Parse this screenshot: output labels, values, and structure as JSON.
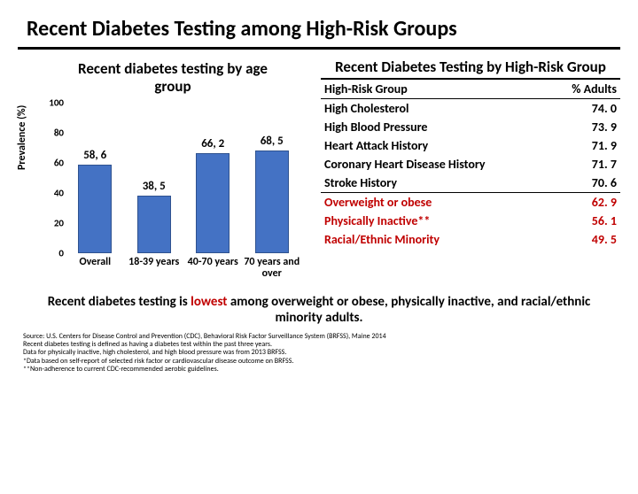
{
  "title": "Recent Diabetes Testing among High-Risk Groups",
  "chart": {
    "type": "bar",
    "title": "Recent diabetes testing by age group",
    "ylabel": "Prevalence (%)",
    "ylim": [
      0,
      100
    ],
    "ytick_step": 20,
    "yticks": [
      0,
      20,
      40,
      60,
      80,
      100
    ],
    "categories": [
      "Overall",
      "18-39 years",
      "40-70 years",
      "70 years and over"
    ],
    "labels": [
      "58, 6",
      "38, 5",
      "66, 2",
      "68, 5"
    ],
    "values": [
      58.6,
      38.5,
      66.2,
      68.5
    ],
    "bar_color": "#4472c4",
    "bar_border": "#2f528f",
    "background": "#ffffff",
    "label_fontsize": 13,
    "tick_fontsize": 11
  },
  "table": {
    "title": "Recent Diabetes Testing by High-Risk Group",
    "columns": [
      "High-Risk Group",
      "% Adults"
    ],
    "rows": [
      {
        "label": "High Cholesterol",
        "value": "74. 0",
        "highlight": false
      },
      {
        "label": "High Blood Pressure",
        "value": "73. 9",
        "highlight": false
      },
      {
        "label": "Heart Attack History",
        "value": "71. 9",
        "highlight": false
      },
      {
        "label": "Coronary Heart Disease History",
        "value": "71. 7",
        "highlight": false
      },
      {
        "label": "Stroke History",
        "value": "70. 6",
        "highlight": false
      },
      {
        "label": "Overweight or obese",
        "value": "62. 9",
        "highlight": true
      },
      {
        "label": "Physically Inactive**",
        "value": "56. 1",
        "highlight": true
      },
      {
        "label": "Racial/Ethnic Minority",
        "value": "49. 5",
        "highlight": true
      }
    ]
  },
  "note": {
    "pre": "Recent diabetes testing is ",
    "red": "lowest",
    "post": " among overweight or obese, physically inactive, and racial/ethnic minority adults."
  },
  "footnotes": [
    "Source: U.S. Centers for Disease Control and Prevention (CDC), Behavioral Risk Factor Surveillance System (BRFSS), Maine 2014",
    "Recent diabetes testing is defined as having a diabetes test within the past three years.",
    "Data for physically inactive, high cholesterol, and high blood pressure was from 2013 BRFSS.",
    "*Data based on self-report of selected risk factor or cardiovascular disease outcome on BRFSS.",
    "**Non-adherence to current CDC-recommended aerobic guidelines."
  ]
}
